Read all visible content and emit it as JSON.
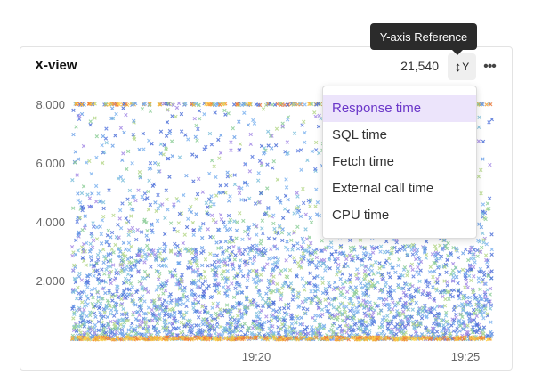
{
  "panel": {
    "title": "X-view",
    "count": "21,540",
    "y_button_label": "Y",
    "y_button_icon": "vertical-resize-arrow-icon",
    "more_icon": "more-horizontal-icon",
    "tooltip": "Y-axis Reference"
  },
  "menu": {
    "items": [
      {
        "label": "Response time",
        "selected": true
      },
      {
        "label": "SQL time",
        "selected": false
      },
      {
        "label": "Fetch time",
        "selected": false
      },
      {
        "label": "External call time",
        "selected": false
      },
      {
        "label": "CPU time",
        "selected": false
      }
    ]
  },
  "colors": {
    "accent": "#6b37c9",
    "selected_bg": "#ece4fb",
    "point_palette": [
      "#5b7be0",
      "#6aa0e8",
      "#7ec0dc",
      "#8fcf9a",
      "#b6d88a",
      "#a58be6",
      "#4c6fd8",
      "#7fb4f0"
    ],
    "baseline_palette": [
      "#f2a33a",
      "#f07a3a",
      "#ffd24a",
      "#f0c040"
    ]
  },
  "chart_data": {
    "type": "scatter",
    "title": "X-view",
    "xlabel": "",
    "ylabel": "",
    "ylim": [
      0,
      8000
    ],
    "y_ticks": [
      "8,000",
      "6,000",
      "4,000",
      "2,000"
    ],
    "y_tick_values": [
      8000,
      6000,
      4000,
      2000
    ],
    "x_ticks": [
      "19:20",
      "19:25"
    ],
    "grid": false,
    "total_points": "21,540",
    "marker": "x",
    "point_density_note": "dense below 3000, sparse above, capped band at 8000 and a dense band at 0"
  }
}
